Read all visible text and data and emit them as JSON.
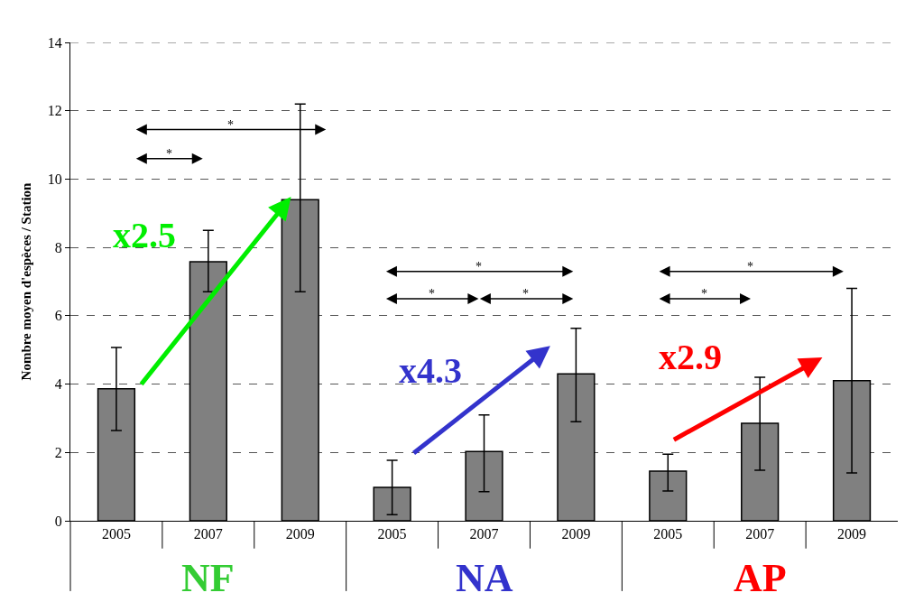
{
  "chart_data": {
    "type": "bar",
    "ylabel": "Nombre moyen d'espèces / Station",
    "categories": [
      "2005",
      "2007",
      "2009",
      "2005",
      "2007",
      "2009",
      "2005",
      "2007",
      "2009"
    ],
    "values": [
      3.86,
      7.58,
      9.4,
      0.98,
      2.03,
      4.3,
      1.45,
      2.85,
      4.1
    ],
    "errors": [
      [
        2.64,
        5.07
      ],
      [
        6.7,
        8.5
      ],
      [
        6.7,
        12.2
      ],
      [
        0.18,
        1.77
      ],
      [
        0.85,
        3.1
      ],
      [
        2.9,
        5.63
      ],
      [
        0.87,
        1.95
      ],
      [
        1.48,
        4.2
      ],
      [
        1.4,
        6.8
      ]
    ],
    "color": "#808080",
    "ylim": [
      0,
      14
    ],
    "yticks": [
      0,
      2,
      4,
      6,
      8,
      10,
      12,
      14
    ],
    "grid": "y",
    "annotations": [
      "*",
      "*",
      "*",
      "*",
      "*",
      "*",
      "*",
      "x2.5",
      "x4.3",
      "x2.9",
      "NF",
      "NA",
      "AP"
    ]
  }
}
